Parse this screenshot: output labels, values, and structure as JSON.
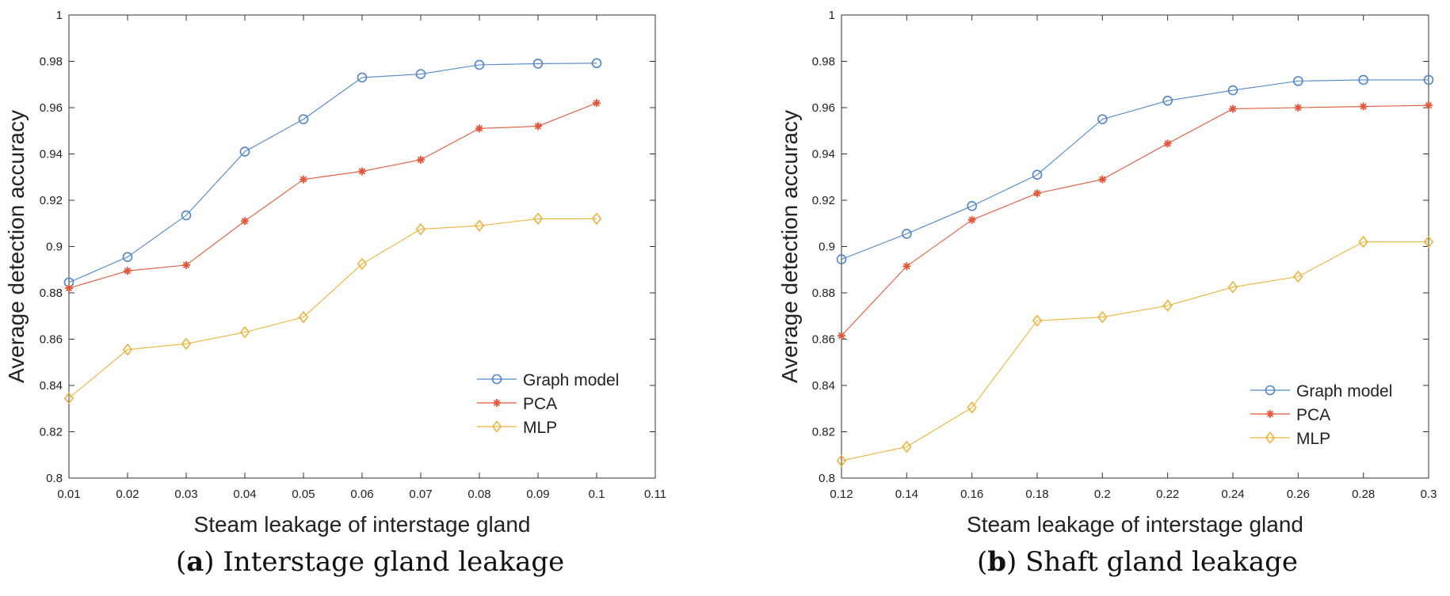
{
  "captions": [
    {
      "label": "a",
      "text": "Interstage gland leakage"
    },
    {
      "label": "b",
      "text": "Shaft gland leakage"
    }
  ],
  "colors": {
    "graph_model": "#4f86c6",
    "pca": "#e2573a",
    "mlp": "#eab43c",
    "axis": "#333333"
  },
  "chart_data": [
    {
      "type": "line",
      "xlabel": "Steam leakage of interstage gland",
      "ylabel": "Average detection accuracy",
      "xlim": [
        0.01,
        0.11
      ],
      "ylim": [
        0.8,
        1.0
      ],
      "xticks": [
        0.01,
        0.02,
        0.03,
        0.04,
        0.05,
        0.06,
        0.07,
        0.08,
        0.09,
        0.1,
        0.11
      ],
      "xtick_labels": [
        "0.01",
        "0.02",
        "0.03",
        "0.04",
        "0.05",
        "0.06",
        "0.07",
        "0.08",
        "0.09",
        "0.1",
        "0.11"
      ],
      "yticks": [
        0.8,
        0.82,
        0.84,
        0.86,
        0.88,
        0.9,
        0.92,
        0.94,
        0.96,
        0.98,
        1.0
      ],
      "ytick_labels": [
        "0.8",
        "0.82",
        "0.84",
        "0.86",
        "0.88",
        "0.9",
        "0.92",
        "0.94",
        "0.96",
        "0.98",
        "1"
      ],
      "grid": false,
      "legend_position": "lower-right",
      "x": [
        0.01,
        0.02,
        0.03,
        0.04,
        0.05,
        0.06,
        0.07,
        0.08,
        0.09,
        0.1
      ],
      "series": [
        {
          "name": "Graph model",
          "marker": "circle",
          "color": "#4f86c6",
          "values": [
            0.8845,
            0.8955,
            0.9135,
            0.941,
            0.955,
            0.973,
            0.9745,
            0.9785,
            0.979,
            0.9792
          ]
        },
        {
          "name": "PCA",
          "marker": "asterisk",
          "color": "#e2573a",
          "values": [
            0.882,
            0.8895,
            0.892,
            0.911,
            0.929,
            0.9325,
            0.9375,
            0.951,
            0.952,
            0.962
          ]
        },
        {
          "name": "MLP",
          "marker": "diamond",
          "color": "#eab43c",
          "values": [
            0.8345,
            0.8555,
            0.858,
            0.863,
            0.8695,
            0.8925,
            0.9075,
            0.909,
            0.912,
            0.912
          ]
        }
      ]
    },
    {
      "type": "line",
      "xlabel": "Steam leakage of interstage gland",
      "ylabel": "Average detection accuracy",
      "xlim": [
        0.12,
        0.3
      ],
      "ylim": [
        0.8,
        1.0
      ],
      "xticks": [
        0.12,
        0.14,
        0.16,
        0.18,
        0.2,
        0.22,
        0.24,
        0.26,
        0.28,
        0.3
      ],
      "xtick_labels": [
        "0.12",
        "0.14",
        "0.16",
        "0.18",
        "0.2",
        "0.22",
        "0.24",
        "0.26",
        "0.28",
        "0.3"
      ],
      "yticks": [
        0.8,
        0.82,
        0.84,
        0.86,
        0.88,
        0.9,
        0.92,
        0.94,
        0.96,
        0.98,
        1.0
      ],
      "ytick_labels": [
        "0.8",
        "0.82",
        "0.84",
        "0.86",
        "0.88",
        "0.9",
        "0.92",
        "0.94",
        "0.96",
        "0.98",
        "1"
      ],
      "grid": false,
      "legend_position": "lower-right",
      "x": [
        0.12,
        0.14,
        0.16,
        0.18,
        0.2,
        0.22,
        0.24,
        0.26,
        0.28,
        0.3
      ],
      "series": [
        {
          "name": "Graph model",
          "marker": "circle",
          "color": "#4f86c6",
          "values": [
            0.8945,
            0.9055,
            0.9175,
            0.931,
            0.955,
            0.963,
            0.9675,
            0.9715,
            0.972,
            0.972
          ]
        },
        {
          "name": "PCA",
          "marker": "asterisk",
          "color": "#e2573a",
          "values": [
            0.8615,
            0.8915,
            0.9115,
            0.923,
            0.929,
            0.9445,
            0.9595,
            0.96,
            0.9605,
            0.961
          ]
        },
        {
          "name": "MLP",
          "marker": "diamond",
          "color": "#eab43c",
          "values": [
            0.8075,
            0.8135,
            0.8305,
            0.868,
            0.8695,
            0.8745,
            0.8825,
            0.887,
            0.902,
            0.902
          ]
        }
      ]
    }
  ]
}
